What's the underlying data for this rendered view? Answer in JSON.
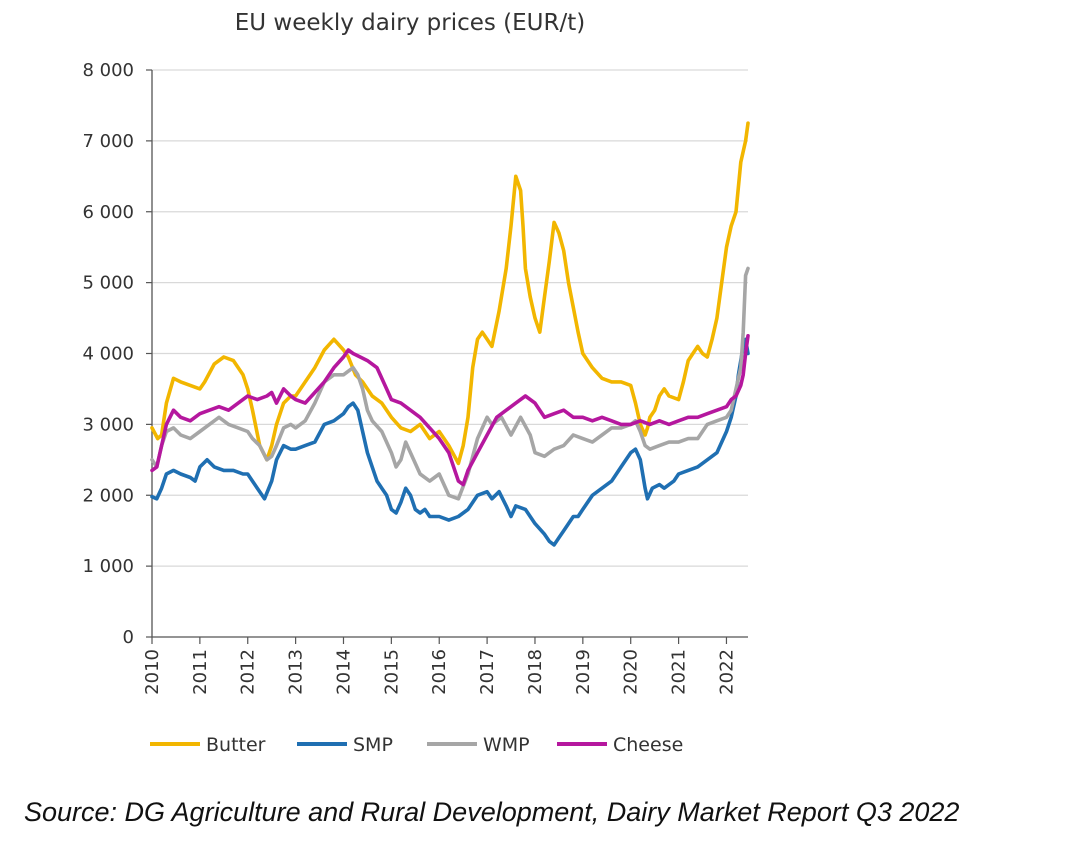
{
  "chart_data": {
    "type": "line",
    "title": "EU weekly dairy prices (EUR/t)",
    "xlabel": "",
    "ylabel": "",
    "xlim": [
      2010,
      2022.45
    ],
    "ylim": [
      0,
      8000
    ],
    "yticks": [
      0,
      1000,
      2000,
      3000,
      4000,
      5000,
      6000,
      7000,
      8000
    ],
    "ytick_labels": [
      "0",
      "1 000",
      "2 000",
      "3 000",
      "4 000",
      "5 000",
      "6 000",
      "7 000",
      "8 000"
    ],
    "xticks": [
      2010,
      2011,
      2012,
      2013,
      2014,
      2015,
      2016,
      2017,
      2018,
      2019,
      2020,
      2021,
      2022
    ],
    "xtick_labels": [
      "2010",
      "2011",
      "2012",
      "2013",
      "2014",
      "2015",
      "2016",
      "2017",
      "2018",
      "2019",
      "2020",
      "2021",
      "2022"
    ],
    "grid": "horizontal",
    "legend_position": "bottom",
    "series": [
      {
        "name": "Butter",
        "color": "#f2b600",
        "x": [
          2010.0,
          2010.12,
          2010.2,
          2010.3,
          2010.45,
          2010.6,
          2010.8,
          2011.0,
          2011.1,
          2011.3,
          2011.5,
          2011.7,
          2011.9,
          2012.0,
          2012.1,
          2012.25,
          2012.4,
          2012.5,
          2012.6,
          2012.75,
          2012.9,
          2013.0,
          2013.2,
          2013.4,
          2013.6,
          2013.8,
          2014.0,
          2014.1,
          2014.25,
          2014.4,
          2014.6,
          2014.8,
          2015.0,
          2015.2,
          2015.4,
          2015.6,
          2015.8,
          2016.0,
          2016.2,
          2016.4,
          2016.5,
          2016.6,
          2016.7,
          2016.8,
          2016.9,
          2017.0,
          2017.1,
          2017.25,
          2017.4,
          2017.5,
          2017.6,
          2017.7,
          2017.75,
          2017.8,
          2017.9,
          2018.0,
          2018.1,
          2018.2,
          2018.3,
          2018.4,
          2018.5,
          2018.6,
          2018.7,
          2018.8,
          2018.9,
          2019.0,
          2019.2,
          2019.4,
          2019.6,
          2019.8,
          2020.0,
          2020.1,
          2020.2,
          2020.3,
          2020.35,
          2020.4,
          2020.5,
          2020.6,
          2020.7,
          2020.8,
          2021.0,
          2021.1,
          2021.2,
          2021.3,
          2021.4,
          2021.5,
          2021.6,
          2021.7,
          2021.8,
          2021.9,
          2022.0,
          2022.1,
          2022.2,
          2022.3,
          2022.4,
          2022.45
        ],
        "values": [
          2950,
          2800,
          2850,
          3300,
          3650,
          3600,
          3550,
          3500,
          3600,
          3850,
          3950,
          3900,
          3700,
          3500,
          3200,
          2700,
          2500,
          2700,
          3000,
          3300,
          3400,
          3400,
          3600,
          3800,
          4050,
          4200,
          4050,
          3950,
          3700,
          3600,
          3400,
          3300,
          3100,
          2950,
          2900,
          3000,
          2800,
          2900,
          2700,
          2450,
          2700,
          3100,
          3800,
          4200,
          4300,
          4200,
          4100,
          4600,
          5200,
          5800,
          6500,
          6300,
          5800,
          5200,
          4800,
          4500,
          4300,
          4800,
          5300,
          5850,
          5700,
          5450,
          5000,
          4650,
          4300,
          4000,
          3800,
          3650,
          3600,
          3600,
          3550,
          3300,
          3000,
          2850,
          2950,
          3100,
          3200,
          3400,
          3500,
          3400,
          3350,
          3600,
          3900,
          4000,
          4100,
          4000,
          3950,
          4200,
          4500,
          5000,
          5500,
          5800,
          6000,
          6700,
          7000,
          7250
        ]
      },
      {
        "name": "SMP",
        "color": "#1f6fb2",
        "x": [
          2010.0,
          2010.1,
          2010.2,
          2010.3,
          2010.45,
          2010.6,
          2010.8,
          2010.9,
          2011.0,
          2011.15,
          2011.3,
          2011.5,
          2011.7,
          2011.9,
          2012.0,
          2012.1,
          2012.2,
          2012.35,
          2012.5,
          2012.6,
          2012.75,
          2012.9,
          2013.0,
          2013.2,
          2013.4,
          2013.6,
          2013.8,
          2014.0,
          2014.1,
          2014.2,
          2014.3,
          2014.4,
          2014.5,
          2014.6,
          2014.7,
          2014.8,
          2014.9,
          2015.0,
          2015.1,
          2015.2,
          2015.3,
          2015.4,
          2015.5,
          2015.6,
          2015.7,
          2015.8,
          2016.0,
          2016.2,
          2016.4,
          2016.6,
          2016.8,
          2017.0,
          2017.1,
          2017.25,
          2017.4,
          2017.5,
          2017.6,
          2017.8,
          2018.0,
          2018.2,
          2018.3,
          2018.4,
          2018.5,
          2018.6,
          2018.7,
          2018.8,
          2018.9,
          2019.0,
          2019.2,
          2019.4,
          2019.6,
          2019.8,
          2020.0,
          2020.1,
          2020.2,
          2020.3,
          2020.35,
          2020.45,
          2020.6,
          2020.7,
          2020.9,
          2021.0,
          2021.2,
          2021.4,
          2021.6,
          2021.8,
          2022.0,
          2022.1,
          2022.2,
          2022.25,
          2022.3,
          2022.35,
          2022.4,
          2022.45
        ],
        "values": [
          1980,
          1950,
          2100,
          2300,
          2350,
          2300,
          2250,
          2200,
          2400,
          2500,
          2400,
          2350,
          2350,
          2300,
          2300,
          2200,
          2100,
          1950,
          2200,
          2500,
          2700,
          2650,
          2650,
          2700,
          2750,
          3000,
          3050,
          3150,
          3250,
          3300,
          3200,
          2900,
          2600,
          2400,
          2200,
          2100,
          2000,
          1800,
          1750,
          1900,
          2100,
          2000,
          1800,
          1750,
          1800,
          1700,
          1700,
          1650,
          1700,
          1800,
          2000,
          2050,
          1950,
          2050,
          1850,
          1700,
          1850,
          1800,
          1600,
          1450,
          1350,
          1300,
          1400,
          1500,
          1600,
          1700,
          1700,
          1800,
          2000,
          2100,
          2200,
          2400,
          2600,
          2650,
          2500,
          2100,
          1950,
          2100,
          2150,
          2100,
          2200,
          2300,
          2350,
          2400,
          2500,
          2600,
          2900,
          3100,
          3400,
          3700,
          3900,
          4100,
          4200,
          4000
        ]
      },
      {
        "name": "WMP",
        "color": "#a6a6a6",
        "x": [
          2010.0,
          2010.1,
          2010.2,
          2010.3,
          2010.45,
          2010.6,
          2010.8,
          2011.0,
          2011.2,
          2011.4,
          2011.6,
          2011.8,
          2012.0,
          2012.1,
          2012.25,
          2012.4,
          2012.5,
          2012.6,
          2012.75,
          2012.9,
          2013.0,
          2013.2,
          2013.4,
          2013.6,
          2013.8,
          2014.0,
          2014.1,
          2014.2,
          2014.3,
          2014.4,
          2014.5,
          2014.6,
          2014.8,
          2015.0,
          2015.1,
          2015.2,
          2015.3,
          2015.4,
          2015.6,
          2015.8,
          2016.0,
          2016.2,
          2016.4,
          2016.6,
          2016.8,
          2017.0,
          2017.1,
          2017.3,
          2017.5,
          2017.7,
          2017.9,
          2018.0,
          2018.2,
          2018.4,
          2018.6,
          2018.8,
          2019.0,
          2019.2,
          2019.4,
          2019.6,
          2019.8,
          2020.0,
          2020.1,
          2020.2,
          2020.3,
          2020.4,
          2020.6,
          2020.8,
          2021.0,
          2021.2,
          2021.4,
          2021.6,
          2021.8,
          2022.0,
          2022.1,
          2022.2,
          2022.3,
          2022.35,
          2022.4,
          2022.45
        ],
        "values": [
          2500,
          2400,
          2700,
          2900,
          2950,
          2850,
          2800,
          2900,
          3000,
          3100,
          3000,
          2950,
          2900,
          2800,
          2700,
          2500,
          2550,
          2700,
          2950,
          3000,
          2950,
          3050,
          3300,
          3600,
          3700,
          3700,
          3750,
          3800,
          3700,
          3500,
          3200,
          3050,
          2900,
          2600,
          2400,
          2500,
          2750,
          2600,
          2300,
          2200,
          2300,
          2000,
          1950,
          2300,
          2800,
          3100,
          3000,
          3100,
          2850,
          3100,
          2850,
          2600,
          2550,
          2650,
          2700,
          2850,
          2800,
          2750,
          2850,
          2950,
          2950,
          3000,
          3050,
          2900,
          2700,
          2650,
          2700,
          2750,
          2750,
          2800,
          2800,
          3000,
          3050,
          3100,
          3200,
          3500,
          3800,
          4300,
          5100,
          5200
        ]
      },
      {
        "name": "Cheese",
        "color": "#b5179e",
        "x": [
          2010.0,
          2010.1,
          2010.2,
          2010.3,
          2010.45,
          2010.6,
          2010.8,
          2011.0,
          2011.2,
          2011.4,
          2011.6,
          2011.8,
          2012.0,
          2012.2,
          2012.4,
          2012.5,
          2012.6,
          2012.75,
          2012.9,
          2013.0,
          2013.2,
          2013.4,
          2013.6,
          2013.8,
          2014.0,
          2014.1,
          2014.2,
          2014.35,
          2014.5,
          2014.7,
          2014.9,
          2015.0,
          2015.2,
          2015.4,
          2015.6,
          2015.8,
          2016.0,
          2016.2,
          2016.4,
          2016.5,
          2016.6,
          2016.8,
          2017.0,
          2017.2,
          2017.4,
          2017.6,
          2017.8,
          2018.0,
          2018.2,
          2018.4,
          2018.6,
          2018.8,
          2019.0,
          2019.2,
          2019.4,
          2019.6,
          2019.8,
          2020.0,
          2020.2,
          2020.4,
          2020.6,
          2020.8,
          2021.0,
          2021.2,
          2021.4,
          2021.6,
          2021.8,
          2022.0,
          2022.1,
          2022.2,
          2022.3,
          2022.35,
          2022.4,
          2022.45
        ],
        "values": [
          2350,
          2400,
          2700,
          3000,
          3200,
          3100,
          3050,
          3150,
          3200,
          3250,
          3200,
          3300,
          3400,
          3350,
          3400,
          3450,
          3300,
          3500,
          3400,
          3350,
          3300,
          3450,
          3600,
          3800,
          3950,
          4050,
          4000,
          3950,
          3900,
          3800,
          3500,
          3350,
          3300,
          3200,
          3100,
          2950,
          2800,
          2600,
          2200,
          2150,
          2350,
          2600,
          2850,
          3100,
          3200,
          3300,
          3400,
          3300,
          3100,
          3150,
          3200,
          3100,
          3100,
          3050,
          3100,
          3050,
          3000,
          3000,
          3050,
          3000,
          3050,
          3000,
          3050,
          3100,
          3100,
          3150,
          3200,
          3250,
          3350,
          3400,
          3550,
          3700,
          4000,
          4250
        ]
      }
    ]
  },
  "source_note": "Source: DG Agriculture and Rural Development, Dairy Market Report Q3 2022"
}
